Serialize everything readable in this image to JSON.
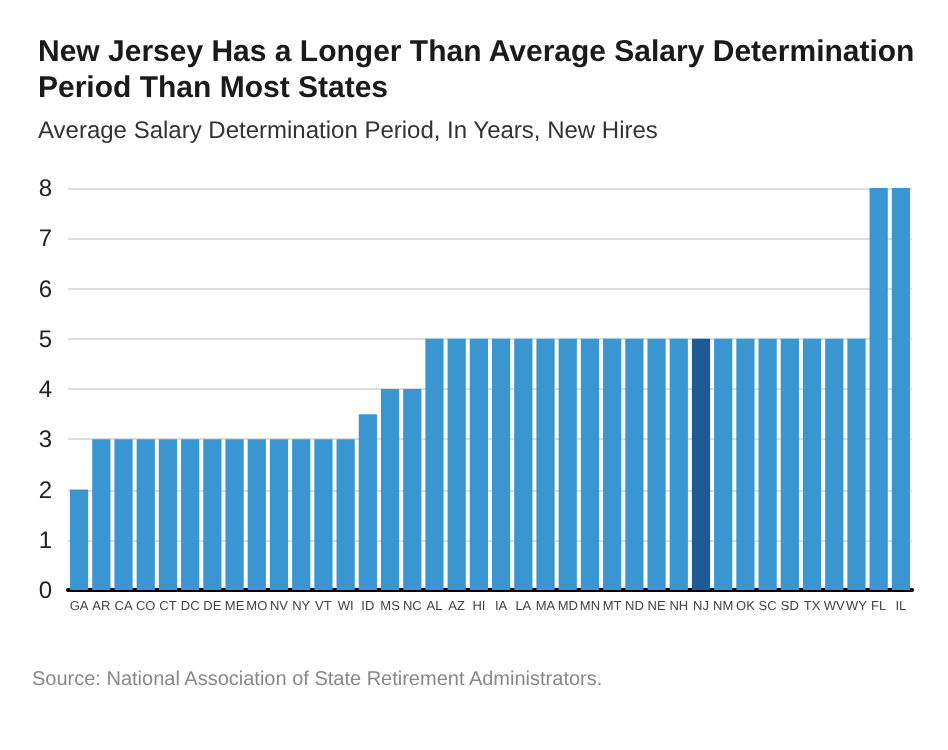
{
  "chart_data": {
    "type": "bar",
    "title": "New Jersey Has a Longer Than Average Salary Determination Period Than Most States",
    "subtitle": "Average Salary Determination Period, In Years, New Hires",
    "categories": [
      "GA",
      "AR",
      "CA",
      "CO",
      "CT",
      "DC",
      "DE",
      "ME",
      "MO",
      "NV",
      "NY",
      "VT",
      "WI",
      "ID",
      "MS",
      "NC",
      "AL",
      "AZ",
      "HI",
      "IA",
      "LA",
      "MA",
      "MD",
      "MN",
      "MT",
      "ND",
      "NE",
      "NH",
      "NJ",
      "NM",
      "OK",
      "SC",
      "SD",
      "TX",
      "WV",
      "WY",
      "FL",
      "IL"
    ],
    "values": [
      2,
      3,
      3,
      3,
      3,
      3,
      3,
      3,
      3,
      3,
      3,
      3,
      3,
      3.5,
      4,
      4,
      5,
      5,
      5,
      5,
      5,
      5,
      5,
      5,
      5,
      5,
      5,
      5,
      5,
      5,
      5,
      5,
      5,
      5,
      5,
      5,
      8,
      8
    ],
    "colors": [
      "#3a96d0",
      "#3a96d0",
      "#3a96d0",
      "#3a96d0",
      "#3a96d0",
      "#3a96d0",
      "#3a96d0",
      "#3a96d0",
      "#3a96d0",
      "#3a96d0",
      "#3a96d0",
      "#3a96d0",
      "#3a96d0",
      "#3a96d0",
      "#3a96d0",
      "#3a96d0",
      "#3a96d0",
      "#3a96d0",
      "#3a96d0",
      "#3a96d0",
      "#3a96d0",
      "#3a96d0",
      "#3a96d0",
      "#3a96d0",
      "#3a96d0",
      "#3a96d0",
      "#3a96d0",
      "#3a96d0",
      "#1f5a96",
      "#3a96d0",
      "#3a96d0",
      "#3a96d0",
      "#3a96d0",
      "#3a96d0",
      "#3a96d0",
      "#3a96d0",
      "#3a96d0",
      "#3a96d0"
    ],
    "ylim": [
      0,
      8
    ],
    "yticks": [
      0,
      1,
      2,
      3,
      4,
      5,
      6,
      7,
      8
    ],
    "grid": "y",
    "annotations": [
      "Source: National Association of State Retirement Administrators."
    ]
  }
}
